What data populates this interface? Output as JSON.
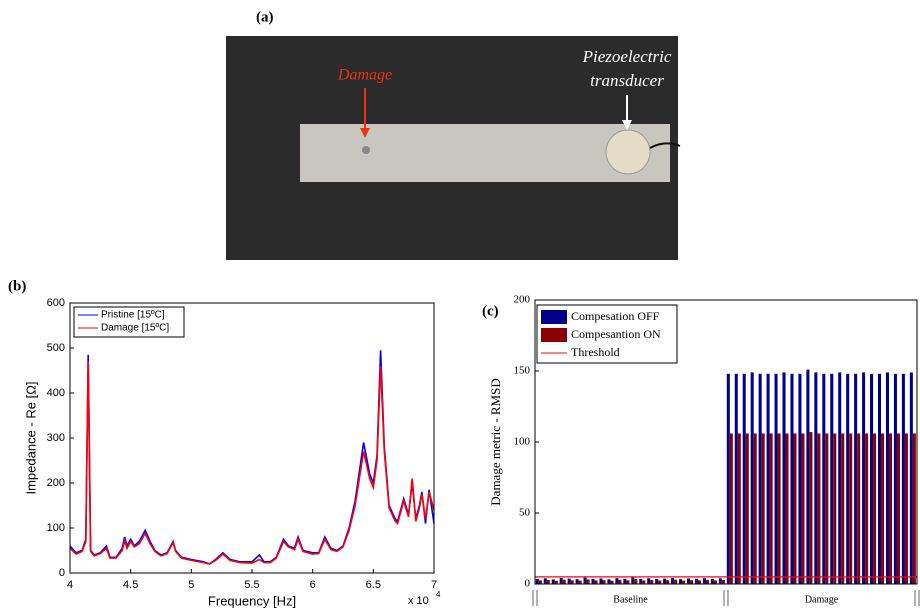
{
  "panel_labels": [
    "(a)",
    "(b)",
    "(c)"
  ],
  "photo": {
    "damage_label": "Damage",
    "transducer_label": [
      "Piezoelectric",
      "transducer"
    ]
  },
  "chart_data": [
    {
      "type": "line",
      "xlabel": "Frequency [Hz]",
      "ylabel": "Impedance - Re [Ω]",
      "x_multiplier": "x 10",
      "x_exponent": "4",
      "xlim": [
        40000,
        70000
      ],
      "xticks": [
        {
          "value": 40000,
          "label": "4"
        },
        {
          "value": 45000,
          "label": "4.5"
        },
        {
          "value": 50000,
          "label": "5"
        },
        {
          "value": 55000,
          "label": "5.5"
        },
        {
          "value": 60000,
          "label": "6"
        },
        {
          "value": 65000,
          "label": "6.5"
        },
        {
          "value": 70000,
          "label": "7"
        }
      ],
      "ylim": [
        0,
        600
      ],
      "yticks": [
        0,
        100,
        200,
        300,
        400,
        500,
        600
      ],
      "grid": false,
      "legend": "upper left",
      "x": [
        40000,
        40500,
        41000,
        41300,
        41500,
        41700,
        42000,
        42500,
        43000,
        43300,
        43800,
        44300,
        44500,
        44700,
        45000,
        45300,
        45700,
        46200,
        46600,
        47000,
        47500,
        48000,
        48500,
        48700,
        49200,
        50000,
        51000,
        51500,
        52000,
        52600,
        53200,
        54000,
        55000,
        55600,
        56000,
        56500,
        57000,
        57600,
        58000,
        58500,
        58800,
        59200,
        60000,
        60500,
        61000,
        61500,
        62000,
        62500,
        63000,
        63500,
        64200,
        64700,
        65000,
        65300,
        65600,
        65900,
        66300,
        66800,
        67000,
        67500,
        67900,
        68200,
        68500,
        68800,
        69000,
        69300,
        69600,
        70000
      ],
      "series": [
        {
          "name": "Pristine [15ºC]",
          "color": "#0000ff",
          "values": [
            60,
            45,
            50,
            75,
            485,
            50,
            40,
            45,
            60,
            35,
            35,
            55,
            80,
            60,
            75,
            60,
            70,
            95,
            70,
            50,
            40,
            45,
            70,
            50,
            35,
            30,
            25,
            20,
            30,
            45,
            30,
            25,
            25,
            40,
            25,
            25,
            35,
            75,
            60,
            55,
            80,
            50,
            45,
            45,
            80,
            55,
            50,
            60,
            100,
            160,
            290,
            220,
            200,
            260,
            495,
            280,
            150,
            120,
            115,
            165,
            130,
            200,
            120,
            150,
            180,
            110,
            185,
            110
          ]
        },
        {
          "name": "Damage [15ºC]",
          "color": "#ff0000",
          "values": [
            55,
            42,
            48,
            70,
            470,
            48,
            38,
            43,
            55,
            33,
            33,
            50,
            72,
            55,
            70,
            58,
            65,
            88,
            65,
            48,
            38,
            43,
            68,
            48,
            33,
            28,
            23,
            20,
            28,
            42,
            28,
            23,
            22,
            30,
            23,
            23,
            33,
            70,
            58,
            52,
            75,
            48,
            42,
            43,
            75,
            52,
            48,
            58,
            95,
            150,
            270,
            210,
            190,
            250,
            460,
            270,
            145,
            115,
            110,
            160,
            125,
            210,
            115,
            145,
            175,
            120,
            180,
            140
          ]
        }
      ]
    },
    {
      "type": "bar",
      "ylabel": "Damage metric - RMSD",
      "ylim": [
        0,
        200
      ],
      "yticks": [
        0,
        50,
        100,
        150,
        200
      ],
      "legend": "upper left",
      "groups": [
        {
          "label": "Baseline",
          "size": 24
        },
        {
          "label": "Damage",
          "size": 24
        }
      ],
      "series": [
        {
          "name": "Compesation OFF",
          "color": "#00008b",
          "values": [
            3.5,
            4,
            3.2,
            4.2,
            3.8,
            3.4,
            4.5,
            3.6,
            3.9,
            3.3,
            4.1,
            3.7,
            5,
            3.5,
            4,
            3.6,
            3.8,
            4.2,
            3.4,
            3.9,
            3.7,
            4.1,
            3.6,
            4,
            148,
            148,
            148,
            149,
            148,
            148,
            148,
            149,
            148,
            148,
            151,
            149,
            148,
            148,
            149,
            148,
            148,
            149,
            148,
            148,
            149,
            148,
            148,
            149
          ]
        },
        {
          "name": "Compesantion ON",
          "color": "#8b0000",
          "values": [
            2.5,
            2.8,
            2.3,
            3,
            2.6,
            2.4,
            3.2,
            2.5,
            2.7,
            2.3,
            2.9,
            2.6,
            3.5,
            2.5,
            2.8,
            2.5,
            2.7,
            3,
            2.4,
            2.7,
            2.6,
            2.9,
            2.5,
            2.8,
            106,
            106,
            106,
            106,
            106,
            106,
            106,
            106,
            106,
            106,
            107,
            106,
            106,
            106,
            106,
            106,
            106,
            106,
            106,
            106,
            106,
            106,
            106,
            106
          ]
        }
      ],
      "threshold": {
        "name": "Threshold",
        "color": "#ff0000",
        "value": 5
      }
    }
  ]
}
